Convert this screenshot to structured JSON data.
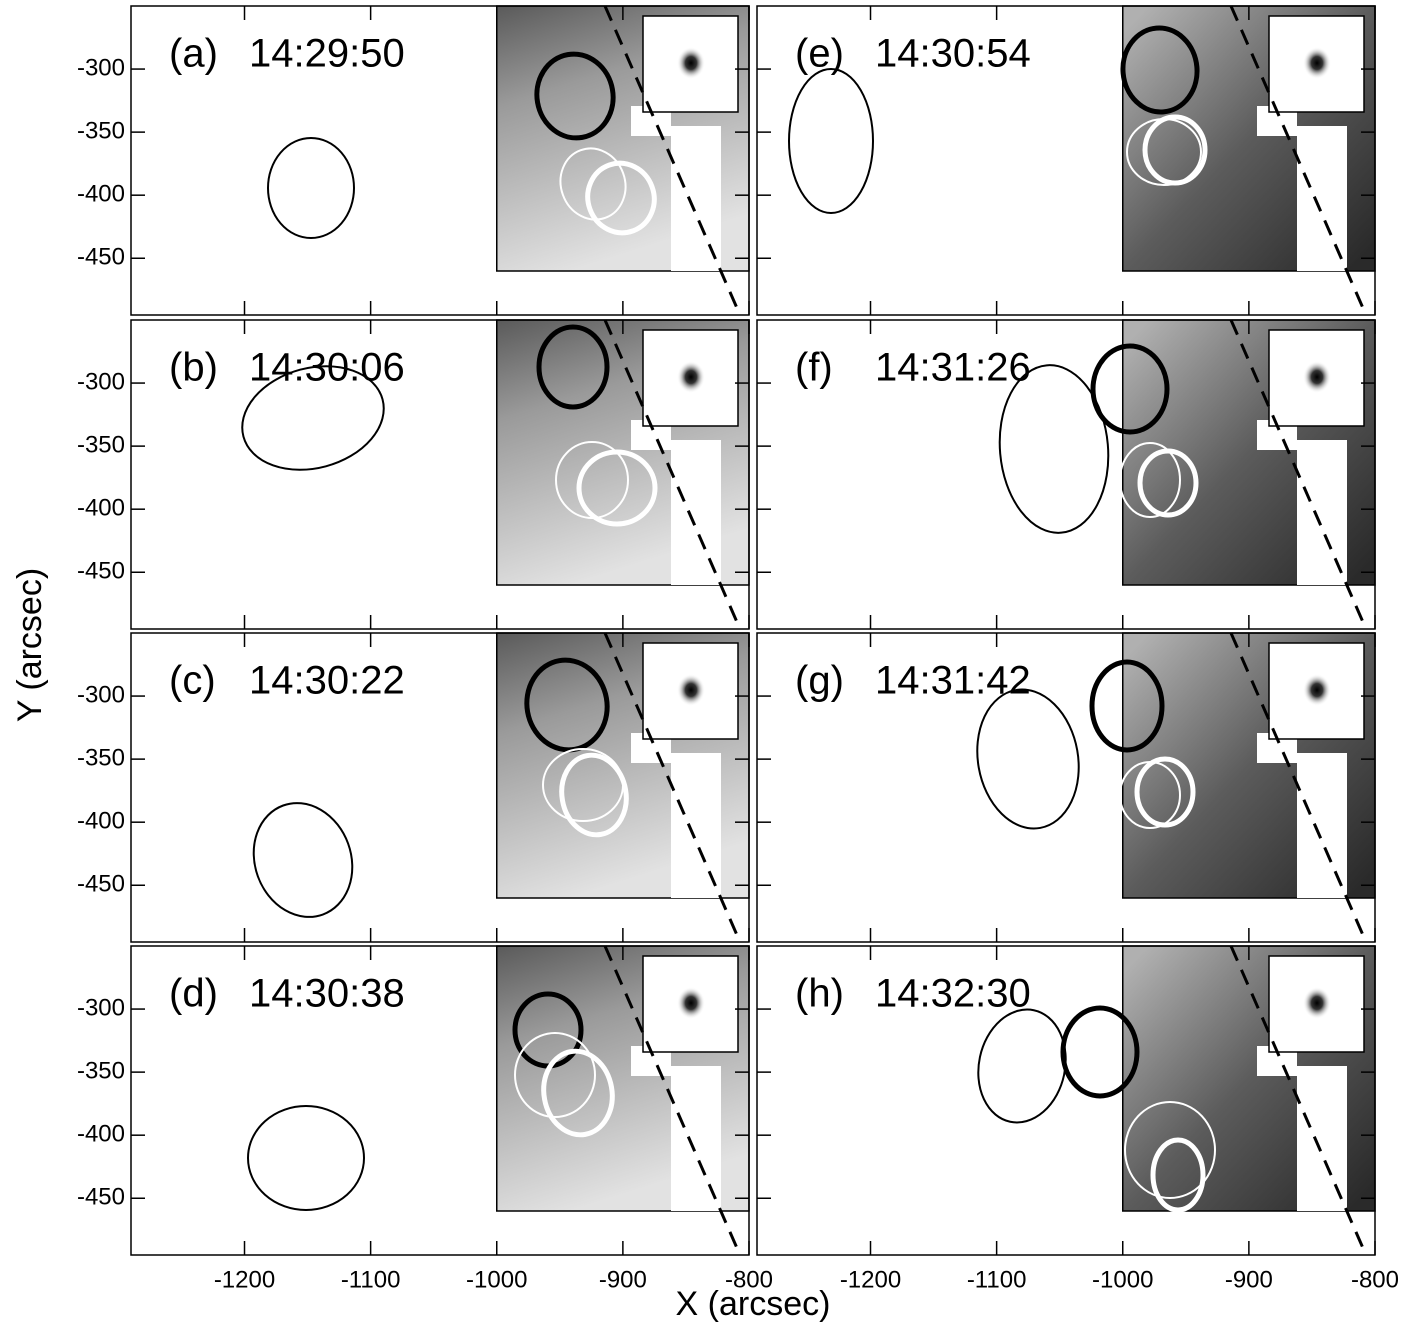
{
  "x_label": "X (arcsec)",
  "y_label": "Y (arcsec)",
  "chart_data": [
    {
      "type": "image",
      "label": "(a)",
      "time": "14:29:50",
      "xlim": [
        -1290,
        -800
      ],
      "ylim": [
        -495,
        -250
      ],
      "xticks": [
        -1200,
        -1100,
        -1000,
        -900,
        -800
      ],
      "yticks": [
        -450,
        -400,
        -350,
        -300
      ]
    },
    {
      "type": "image",
      "label": "(b)",
      "time": "14:30:06",
      "xlim": [
        -1290,
        -800
      ],
      "ylim": [
        -495,
        -250
      ],
      "xticks": [
        -1200,
        -1100,
        -1000,
        -900,
        -800
      ],
      "yticks": [
        -450,
        -400,
        -350,
        -300
      ]
    },
    {
      "type": "image",
      "label": "(c)",
      "time": "14:30:22",
      "xlim": [
        -1290,
        -800
      ],
      "ylim": [
        -495,
        -250
      ],
      "xticks": [
        -1200,
        -1100,
        -1000,
        -900,
        -800
      ],
      "yticks": [
        -450,
        -400,
        -350,
        -300
      ]
    },
    {
      "type": "image",
      "label": "(d)",
      "time": "14:30:38",
      "xlim": [
        -1290,
        -800
      ],
      "ylim": [
        -495,
        -250
      ],
      "xticks": [
        -1200,
        -1100,
        -1000,
        -900,
        -800
      ],
      "yticks": [
        -450,
        -400,
        -350,
        -300
      ]
    },
    {
      "type": "image",
      "label": "(e)",
      "time": "14:30:54",
      "xlim": [
        -1290,
        -800
      ],
      "ylim": [
        -495,
        -250
      ],
      "xticks": [
        -1200,
        -1100,
        -1000,
        -900,
        -800
      ],
      "yticks": [
        -450,
        -400,
        -350,
        -300
      ]
    },
    {
      "type": "image",
      "label": "(f)",
      "time": "14:31:26",
      "xlim": [
        -1290,
        -800
      ],
      "ylim": [
        -495,
        -250
      ],
      "xticks": [
        -1200,
        -1100,
        -1000,
        -900,
        -800
      ],
      "yticks": [
        -450,
        -400,
        -350,
        -300
      ]
    },
    {
      "type": "image",
      "label": "(g)",
      "time": "14:31:42",
      "xlim": [
        -1290,
        -800
      ],
      "ylim": [
        -495,
        -250
      ],
      "xticks": [
        -1200,
        -1100,
        -1000,
        -900,
        -800
      ],
      "yticks": [
        -450,
        -400,
        -350,
        -300
      ]
    },
    {
      "type": "image",
      "label": "(h)",
      "time": "14:32:30",
      "xlim": [
        -1290,
        -800
      ],
      "ylim": [
        -495,
        -250
      ],
      "xticks": [
        -1200,
        -1100,
        -1000,
        -900,
        -800
      ],
      "yticks": [
        -450,
        -400,
        -350,
        -300
      ]
    }
  ]
}
